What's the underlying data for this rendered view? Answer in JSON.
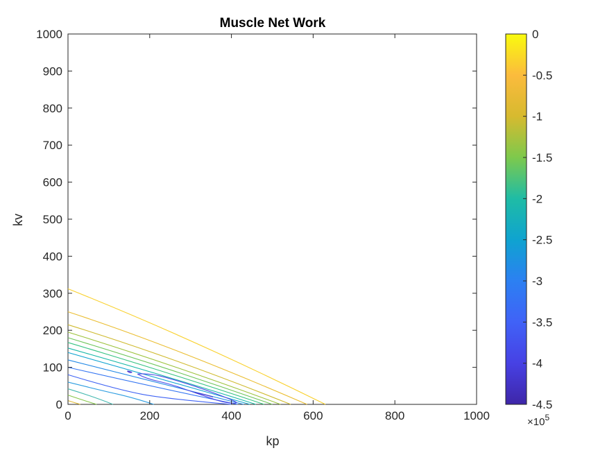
{
  "chart_data": {
    "type": "contour",
    "title": "Muscle Net Work",
    "xlabel": "kp",
    "ylabel": "kv",
    "xlim": [
      0,
      1000
    ],
    "ylim": [
      0,
      1000
    ],
    "xticks": [
      "0",
      "200",
      "400",
      "600",
      "800",
      "1000"
    ],
    "yticks": [
      "0",
      "100",
      "200",
      "300",
      "400",
      "500",
      "600",
      "700",
      "800",
      "900",
      "1000"
    ],
    "grid": false,
    "colorbar": {
      "limits": [
        -4.5,
        0
      ],
      "ticks": [
        "0",
        "-0.5",
        "-1",
        "-1.5",
        "-2",
        "-2.5",
        "-3",
        "-3.5",
        "-4",
        "-4.5"
      ],
      "exponent_label": "×10",
      "exponent_power": "5",
      "colormap": [
        "#f9fb0e",
        "#fbbb3d",
        "#d7ba2f",
        "#7ec94c",
        "#1fbca5",
        "#0fa3d0",
        "#2c80f2",
        "#4062f7",
        "#4741e4",
        "#3e26a8"
      ]
    },
    "contours": [
      {
        "level": -0.25,
        "color": "#f9d02a",
        "points": [
          [
            0,
            312
          ],
          [
            300,
            180
          ],
          [
            630,
            0
          ]
        ]
      },
      {
        "level": -0.5,
        "color": "#eabd30",
        "points": [
          [
            0,
            250
          ],
          [
            250,
            160
          ],
          [
            585,
            0
          ]
        ]
      },
      {
        "level": -0.75,
        "color": "#cfba2f",
        "points": [
          [
            0,
            215
          ],
          [
            250,
            130
          ],
          [
            545,
            0
          ]
        ]
      },
      {
        "level": -1.0,
        "color": "#9cc23c",
        "points": [
          [
            0,
            195
          ],
          [
            250,
            110
          ],
          [
            520,
            0
          ]
        ]
      },
      {
        "level": -1.25,
        "color": "#6cc559",
        "points": [
          [
            0,
            180
          ],
          [
            250,
            97
          ],
          [
            500,
            0
          ]
        ]
      },
      {
        "level": -1.5,
        "color": "#35c382",
        "points": [
          [
            0,
            167
          ],
          [
            250,
            85
          ],
          [
            480,
            0
          ]
        ]
      },
      {
        "level": -1.75,
        "color": "#18b8a8",
        "points": [
          [
            0,
            152
          ],
          [
            250,
            74
          ],
          [
            460,
            0
          ]
        ]
      },
      {
        "level": -2.0,
        "color": "#0fa3d0",
        "points": [
          [
            0,
            140
          ],
          [
            250,
            62
          ],
          [
            445,
            0
          ]
        ]
      },
      {
        "level": -2.25,
        "color": "#2389e6",
        "points": [
          [
            0,
            120
          ],
          [
            250,
            50
          ],
          [
            430,
            0
          ]
        ]
      },
      {
        "level": -2.5,
        "color": "#3374f2",
        "points": [
          [
            0,
            100
          ],
          [
            230,
            42
          ],
          [
            415,
            0
          ]
        ]
      },
      {
        "level": -2.75,
        "color": "#3e62f4",
        "points": [
          [
            0,
            80
          ],
          [
            120,
            40
          ],
          [
            240,
            15
          ],
          [
            400,
            0
          ]
        ]
      },
      {
        "level": -3.0,
        "color": "#2c9ce0",
        "points": [
          [
            0,
            60
          ],
          [
            80,
            38
          ],
          [
            160,
            18
          ],
          [
            210,
            0
          ]
        ]
      },
      {
        "level": -3.25,
        "color": "#44b8b0",
        "points": [
          [
            0,
            42
          ],
          [
            60,
            22
          ],
          [
            110,
            0
          ]
        ]
      },
      {
        "level": -3.5,
        "color": "#86c74a",
        "points": [
          [
            0,
            25
          ],
          [
            40,
            10
          ],
          [
            70,
            0
          ]
        ]
      },
      {
        "level": -3.75,
        "color": "#e0b931",
        "points": [
          [
            0,
            10
          ],
          [
            30,
            0
          ]
        ]
      },
      {
        "level": -4.0,
        "color": "#4a47e6",
        "points": [
          [
            170,
            82
          ],
          [
            200,
            85
          ],
          [
            280,
            60
          ],
          [
            340,
            38
          ],
          [
            395,
            15
          ],
          [
            420,
            2
          ],
          [
            380,
            5
          ],
          [
            320,
            28
          ],
          [
            250,
            55
          ],
          [
            190,
            70
          ],
          [
            170,
            82
          ]
        ]
      },
      {
        "level": -4.25,
        "color": "#4a35d0",
        "points": [
          [
            145,
            90
          ],
          [
            160,
            87
          ],
          [
            150,
            85
          ],
          [
            145,
            90
          ]
        ]
      },
      {
        "level": -4.25,
        "color": "#4a35d0",
        "points": [
          [
            310,
            32
          ],
          [
            330,
            28
          ],
          [
            360,
            18
          ],
          [
            340,
            25
          ],
          [
            310,
            32
          ]
        ]
      }
    ]
  }
}
